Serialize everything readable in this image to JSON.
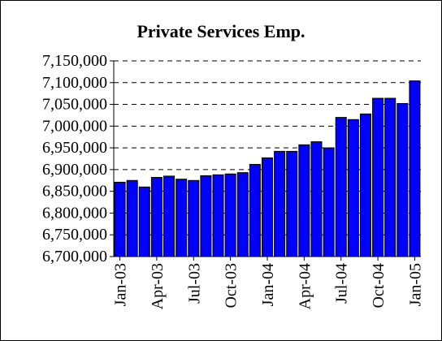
{
  "chart_data": {
    "type": "bar",
    "title": "Private Services Emp.",
    "xlabel": "",
    "ylabel": "",
    "ylim": [
      6700000,
      7150000
    ],
    "yticks": [
      6700000,
      6750000,
      6800000,
      6850000,
      6900000,
      6950000,
      7000000,
      7050000,
      7100000,
      7150000
    ],
    "ytick_labels": [
      "6,700,000",
      "6,750,000",
      "6,800,000",
      "6,850,000",
      "6,900,000",
      "6,950,000",
      "7,000,000",
      "7,050,000",
      "7,100,000",
      "7,150,000"
    ],
    "grid": "horizontal dashed",
    "bar_color": "#0000ff",
    "categories": [
      "Jan-03",
      "Feb-03",
      "Mar-03",
      "Apr-03",
      "May-03",
      "Jun-03",
      "Jul-03",
      "Aug-03",
      "Sep-03",
      "Oct-03",
      "Nov-03",
      "Dec-03",
      "Jan-04",
      "Feb-04",
      "Mar-04",
      "Apr-04",
      "May-04",
      "Jun-04",
      "Jul-04",
      "Aug-04",
      "Sep-04",
      "Oct-04",
      "Nov-04",
      "Dec-04",
      "Jan-05"
    ],
    "x_tick_labels": [
      "Jan-03",
      "Apr-03",
      "Jul-03",
      "Oct-03",
      "Jan-04",
      "Apr-04",
      "Jul-04",
      "Oct-04",
      "Jan-05"
    ],
    "values": [
      6871000,
      6875000,
      6860000,
      6882000,
      6885000,
      6878000,
      6875000,
      6886000,
      6888000,
      6890000,
      6893000,
      6912000,
      6927000,
      6942000,
      6942000,
      6957000,
      6964000,
      6950000,
      7020000,
      7015000,
      7028000,
      7064000,
      7064000,
      7052000,
      7104000
    ]
  }
}
